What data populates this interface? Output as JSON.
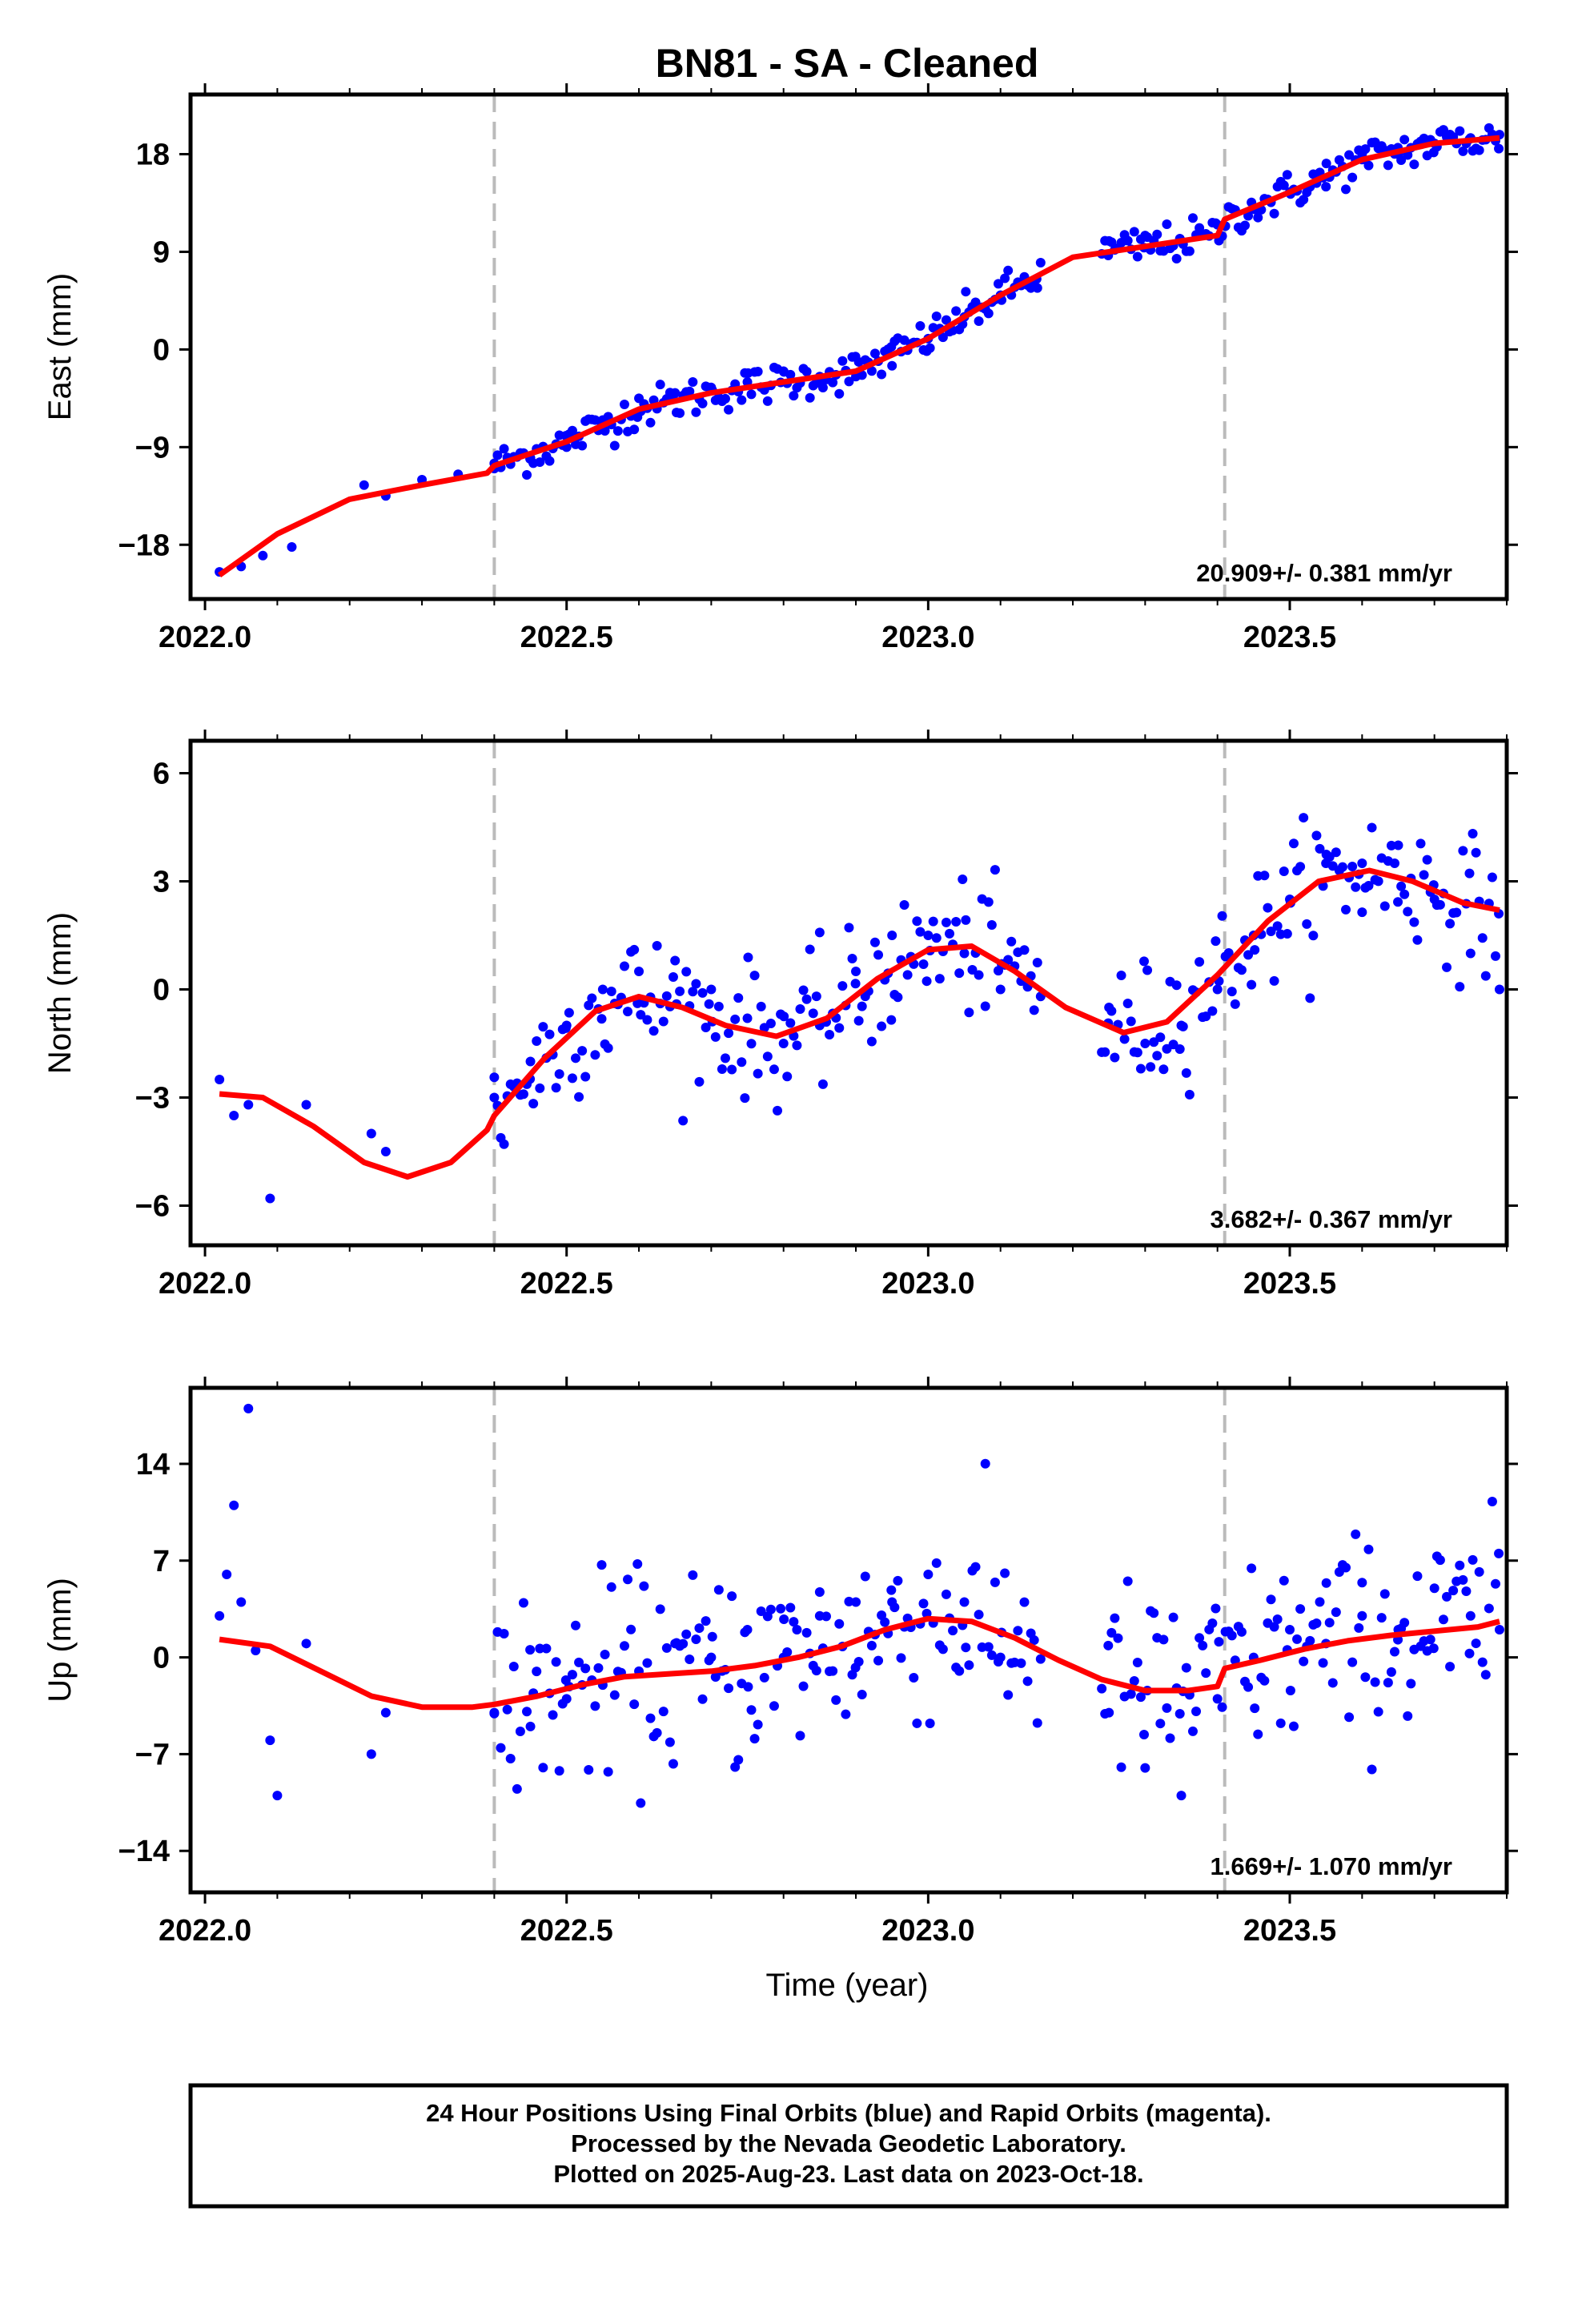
{
  "title": "BN81  - SA - Cleaned",
  "x_axis_label": "Time (year)",
  "caption": [
    "24 Hour Positions Using Final Orbits (blue) and Rapid Orbits (magenta).",
    "Processed by the Nevada Geodetic Laboratory.",
    "Plotted on 2025-Aug-23. Last data on 2023-Oct-18."
  ],
  "colors": {
    "final_orbits": "#0000ff",
    "model": "#ff0000",
    "break_line": "#bbbbbb",
    "frame": "#000000"
  },
  "chart_data": [
    {
      "type": "scatter",
      "ylabel": "East (mm)",
      "rate_text": "20.909+/- 0.381 mm/yr",
      "xlim": [
        2021.98,
        2023.8
      ],
      "ylim": [
        -23.0,
        23.5
      ],
      "x_ticks": [
        "2022.0",
        "2022.5",
        "2023.0",
        "2023.5"
      ],
      "y_ticks": [
        "−18",
        "−9",
        "0",
        "9",
        "18"
      ],
      "equipment_breaks": [
        2022.4,
        2023.41
      ],
      "grid": false,
      "series": [
        {
          "role": "observations",
          "color": "#0000ff",
          "x": [
            2022.02,
            2022.05,
            2022.08,
            2022.12,
            2022.22,
            2022.25,
            2022.3,
            2022.35,
            2022.4,
            2022.45,
            2022.5,
            2022.55,
            2022.6,
            2022.65,
            2022.7,
            2022.75,
            2022.8,
            2022.85,
            2022.9,
            2022.95,
            2023.0,
            2023.05,
            2023.1,
            2023.15,
            2023.25,
            2023.3,
            2023.35,
            2023.4,
            2023.45,
            2023.5,
            2023.55,
            2023.6,
            2023.65,
            2023.7,
            2023.75,
            2023.79
          ],
          "y": [
            -20.5,
            -20.0,
            -19.0,
            -18.2,
            -12.5,
            -13.5,
            -12.0,
            -11.5,
            -10.5,
            -10.0,
            -9.0,
            -6.5,
            -4.5,
            -4.0,
            -3.5,
            -3.0,
            -2.0,
            -2.5,
            -2.5,
            -1.5,
            1.0,
            3.0,
            5.0,
            6.5,
            10.0,
            10.5,
            10.0,
            11.5,
            13.0,
            14.5,
            15.0,
            17.5,
            18.0,
            19.0,
            19.5,
            19.8
          ]
        },
        {
          "role": "model",
          "color": "#ff0000",
          "x": [
            2022.02,
            2022.1,
            2022.2,
            2022.3,
            2022.39,
            2022.4,
            2022.5,
            2022.6,
            2022.7,
            2022.8,
            2022.9,
            2023.0,
            2023.1,
            2023.2,
            2023.3,
            2023.4,
            2023.41,
            2023.5,
            2023.6,
            2023.7,
            2023.79
          ],
          "y": [
            -20.8,
            -17.0,
            -13.8,
            -12.5,
            -11.4,
            -10.7,
            -8.5,
            -5.5,
            -4.0,
            -3.0,
            -2.0,
            1.0,
            5.0,
            8.5,
            9.5,
            10.5,
            12.0,
            14.5,
            17.5,
            19.0,
            19.5
          ]
        }
      ]
    },
    {
      "type": "scatter",
      "ylabel": "North (mm)",
      "rate_text": "3.682+/- 0.367 mm/yr",
      "xlim": [
        2021.98,
        2023.8
      ],
      "ylim": [
        -7.1,
        6.9
      ],
      "x_ticks": [
        "2022.0",
        "2022.5",
        "2023.0",
        "2023.5"
      ],
      "y_ticks": [
        "−6",
        "−3",
        "0",
        "3",
        "6"
      ],
      "equipment_breaks": [
        2022.4,
        2023.41
      ],
      "grid": false,
      "series": [
        {
          "role": "observations",
          "color": "#0000ff",
          "x": [
            2022.02,
            2022.04,
            2022.06,
            2022.09,
            2022.14,
            2022.23,
            2022.25,
            2022.4,
            2022.45,
            2022.5,
            2022.55,
            2022.6,
            2022.65,
            2022.7,
            2022.75,
            2022.8,
            2022.85,
            2022.9,
            2022.95,
            2023.0,
            2023.05,
            2023.1,
            2023.25,
            2023.3,
            2023.35,
            2023.4,
            2023.45,
            2023.5,
            2023.55,
            2023.6,
            2023.65,
            2023.7,
            2023.75,
            2023.79
          ],
          "y": [
            -2.5,
            -3.5,
            -3.2,
            -5.8,
            -3.2,
            -4.0,
            -4.5,
            -3.0,
            -2.0,
            -1.0,
            0.0,
            0.5,
            0.8,
            0.0,
            -0.8,
            -1.5,
            -1.0,
            0.5,
            1.5,
            1.5,
            1.0,
            0.0,
            -0.5,
            -1.5,
            -1.0,
            0.0,
            1.5,
            2.5,
            3.5,
            3.5,
            4.0,
            2.5,
            1.0,
            0.0
          ]
        },
        {
          "role": "model",
          "color": "#ff0000",
          "x": [
            2022.02,
            2022.08,
            2022.15,
            2022.22,
            2022.28,
            2022.34,
            2022.39,
            2022.4,
            2022.47,
            2022.54,
            2022.6,
            2022.66,
            2022.72,
            2022.79,
            2022.86,
            2022.93,
            2023.0,
            2023.06,
            2023.12,
            2023.19,
            2023.27,
            2023.33,
            2023.4,
            2023.47,
            2023.54,
            2023.61,
            2023.67,
            2023.74,
            2023.79
          ],
          "y": [
            -2.9,
            -3.0,
            -3.8,
            -4.8,
            -5.2,
            -4.8,
            -3.9,
            -3.5,
            -1.9,
            -0.6,
            -0.2,
            -0.5,
            -1.0,
            -1.3,
            -0.8,
            0.3,
            1.1,
            1.2,
            0.5,
            -0.5,
            -1.2,
            -0.9,
            0.4,
            1.9,
            3.0,
            3.3,
            3.0,
            2.4,
            2.2
          ]
        }
      ]
    },
    {
      "type": "scatter",
      "ylabel": "Up (mm)",
      "rate_text": "1.669+/- 1.070 mm/yr",
      "xlim": [
        2021.98,
        2023.8
      ],
      "ylim": [
        -17.0,
        19.5
      ],
      "x_ticks": [
        "2022.0",
        "2022.5",
        "2023.0",
        "2023.5"
      ],
      "y_ticks": [
        "−14",
        "−7",
        "0",
        "7",
        "14"
      ],
      "equipment_breaks": [
        2022.4,
        2023.41
      ],
      "grid": false,
      "series": [
        {
          "role": "observations",
          "color": "#0000ff",
          "x": [
            2022.02,
            2022.03,
            2022.04,
            2022.05,
            2022.06,
            2022.07,
            2022.09,
            2022.1,
            2022.14,
            2022.23,
            2022.25,
            2022.4,
            2022.45,
            2022.5,
            2022.55,
            2022.6,
            2022.65,
            2022.7,
            2022.75,
            2022.8,
            2022.85,
            2022.9,
            2022.95,
            2023.0,
            2023.05,
            2023.1,
            2023.25,
            2023.3,
            2023.35,
            2023.4,
            2023.45,
            2023.5,
            2023.55,
            2023.6,
            2023.65,
            2023.7,
            2023.75,
            2023.79
          ],
          "y": [
            3.0,
            6.0,
            11.0,
            4.0,
            18.0,
            0.5,
            -6.0,
            -10.0,
            1.0,
            -7.0,
            -4.0,
            -4.0,
            -5.0,
            -3.0,
            -2.0,
            -1.0,
            1.0,
            0.0,
            2.0,
            0.0,
            3.0,
            4.0,
            4.0,
            6.0,
            4.0,
            0.0,
            -4.0,
            -8.0,
            -10.0,
            -3.0,
            0.0,
            2.0,
            1.0,
            3.0,
            2.0,
            5.0,
            3.0,
            2.0
          ]
        },
        {
          "role": "model",
          "color": "#ff0000",
          "x": [
            2022.02,
            2022.09,
            2022.16,
            2022.23,
            2022.3,
            2022.37,
            2022.4,
            2022.46,
            2022.52,
            2022.58,
            2022.64,
            2022.7,
            2022.76,
            2022.82,
            2022.88,
            2022.94,
            2023.0,
            2023.06,
            2023.12,
            2023.18,
            2023.24,
            2023.3,
            2023.36,
            2023.4,
            2023.41,
            2023.46,
            2023.52,
            2023.58,
            2023.64,
            2023.7,
            2023.76,
            2023.79
          ],
          "y": [
            1.3,
            0.8,
            -1.0,
            -2.8,
            -3.6,
            -3.6,
            -3.4,
            -2.8,
            -2.0,
            -1.4,
            -1.2,
            -1.0,
            -0.6,
            0.0,
            0.8,
            2.0,
            2.8,
            2.6,
            1.4,
            -0.2,
            -1.6,
            -2.4,
            -2.4,
            -2.1,
            -0.8,
            -0.2,
            0.6,
            1.2,
            1.6,
            1.9,
            2.2,
            2.6
          ]
        }
      ]
    }
  ]
}
